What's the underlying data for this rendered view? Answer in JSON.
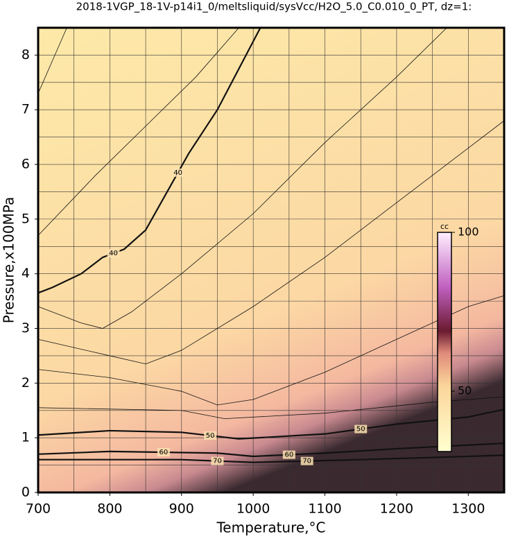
{
  "chart_data": {
    "type": "contour",
    "title": "2018-1VGP_18-1V-p14i1_0/meltsliquid/sysVcc/H2O_5.0_C0.010_0_PT, dz=1:",
    "xlabel": "Temperature,°C",
    "ylabel": "Pressure,x100MPa",
    "xlim": [
      700,
      1350
    ],
    "ylim": [
      0,
      8.5
    ],
    "xticks": [
      700,
      800,
      900,
      1000,
      1100,
      1200,
      1300
    ],
    "yticks": [
      0,
      1,
      2,
      3,
      4,
      5,
      6,
      7,
      8
    ],
    "xgrid": [
      750,
      800,
      850,
      900,
      950,
      1000,
      1050,
      1100,
      1150,
      1200,
      1250,
      1300
    ],
    "ygrid": [
      0.5,
      1,
      1.5,
      2,
      2.5,
      3,
      3.5,
      4,
      4.5,
      5,
      5.5,
      6,
      6.5,
      7,
      7.5,
      8
    ],
    "grid": true,
    "colorbar": {
      "label": "cc",
      "clim": [
        31,
        100
      ],
      "ticks": [
        50,
        100
      ]
    },
    "contours": [
      {
        "level": 40,
        "bold": true,
        "x": [
          700,
          720,
          760,
          790,
          820,
          850,
          880,
          910,
          950,
          990,
          1010
        ],
        "y": [
          3.65,
          3.75,
          4.0,
          4.3,
          4.45,
          4.8,
          5.5,
          6.2,
          7.0,
          8.0,
          8.5
        ]
      },
      {
        "level": 50,
        "bold": true,
        "x": [
          700,
          800,
          900,
          980,
          1100,
          1200,
          1300,
          1350
        ],
        "y": [
          1.05,
          1.13,
          1.1,
          0.98,
          1.07,
          1.25,
          1.38,
          1.52
        ]
      },
      {
        "level": 60,
        "bold": true,
        "x": [
          700,
          800,
          950,
          1000,
          1100,
          1200,
          1350
        ],
        "y": [
          0.7,
          0.75,
          0.72,
          0.66,
          0.72,
          0.8,
          0.9
        ]
      },
      {
        "level": 70,
        "bold": true,
        "x": [
          700,
          900,
          1000,
          1150,
          1350
        ],
        "y": [
          0.6,
          0.6,
          0.55,
          0.6,
          0.68
        ]
      },
      {
        "bold": false,
        "x": [
          700,
          740
        ],
        "y": [
          7.3,
          8.5
        ]
      },
      {
        "bold": false,
        "x": [
          700,
          780,
          850,
          920,
          980
        ],
        "y": [
          4.7,
          5.8,
          6.7,
          7.6,
          8.5
        ]
      },
      {
        "bold": false,
        "x": [
          700,
          760,
          790,
          830,
          900,
          1000,
          1100,
          1200,
          1270
        ],
        "y": [
          3.4,
          3.1,
          3.0,
          3.3,
          4.0,
          5.1,
          6.4,
          7.6,
          8.5
        ]
      },
      {
        "bold": false,
        "x": [
          700,
          800,
          850,
          900,
          1000,
          1100,
          1200,
          1300,
          1350
        ],
        "y": [
          2.8,
          2.5,
          2.35,
          2.6,
          3.4,
          4.3,
          5.3,
          6.3,
          6.8
        ]
      },
      {
        "bold": false,
        "x": [
          700,
          800,
          900,
          950,
          1000,
          1100,
          1200,
          1300,
          1350
        ],
        "y": [
          2.25,
          2.1,
          1.85,
          1.6,
          1.7,
          2.2,
          2.8,
          3.4,
          3.6
        ]
      },
      {
        "bold": false,
        "x": [
          700,
          900,
          960,
          1100,
          1250,
          1350
        ],
        "y": [
          1.55,
          1.5,
          1.35,
          1.45,
          1.65,
          1.75
        ]
      }
    ]
  }
}
